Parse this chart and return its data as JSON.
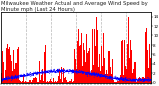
{
  "title": "Milwaukee Weather Actual and Average Wind Speed by Minute mph (Last 24 Hours)",
  "title_fontsize": 3.8,
  "ylabel_right_ticks": [
    0,
    2,
    4,
    6,
    8,
    10,
    12,
    14
  ],
  "ylim": [
    0,
    15
  ],
  "num_points": 1440,
  "bar_color": "#ff0000",
  "line_color": "#0000ff",
  "background_color": "#ffffff",
  "vline_color": "#b0b0b0",
  "num_vlines": 6,
  "seed": 99
}
